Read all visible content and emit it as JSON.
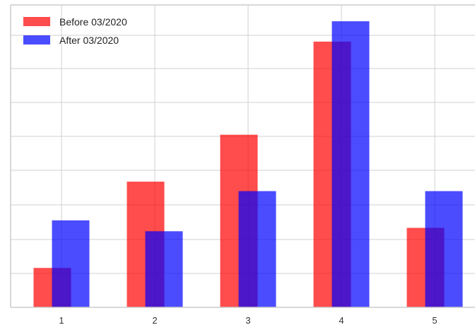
{
  "chart_data": {
    "type": "bar",
    "title": "",
    "xlabel": "",
    "ylabel": "",
    "categories": [
      "1",
      "2",
      "3",
      "4",
      "5"
    ],
    "series": [
      {
        "name": "Before 03/2020",
        "color": "#ff0000",
        "values": [
          0.58,
          1.85,
          2.54,
          3.91,
          1.17
        ]
      },
      {
        "name": "After 03/2020",
        "color": "#0000ff",
        "values": [
          1.28,
          1.12,
          1.71,
          4.21,
          1.71
        ]
      }
    ],
    "ylim": [
      0,
      4.45
    ],
    "grid": true,
    "legend_position": "top-left"
  }
}
